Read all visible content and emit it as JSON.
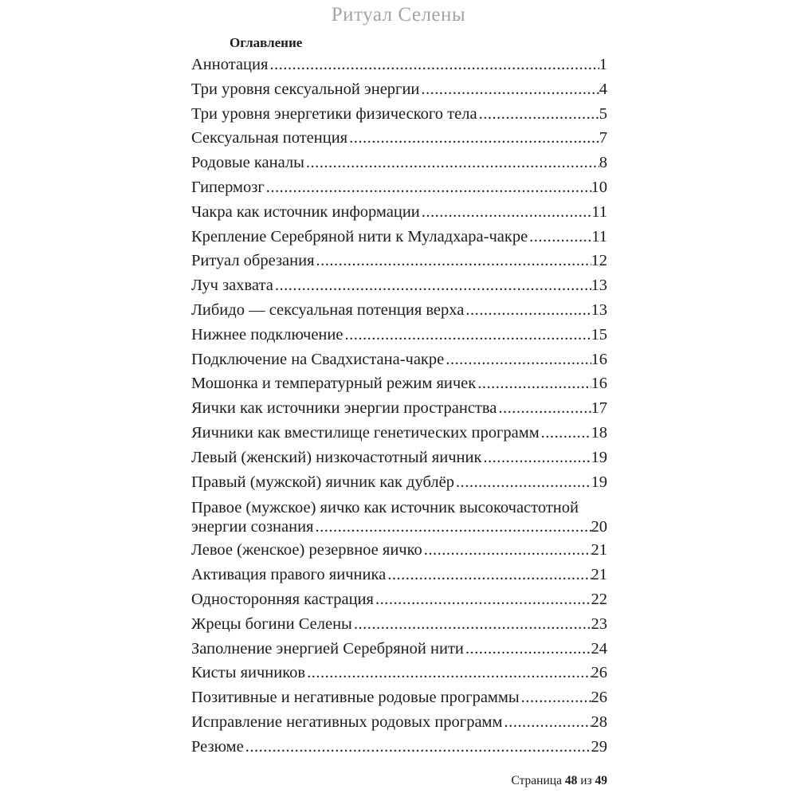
{
  "header": {
    "title": "Ритуал Селены"
  },
  "toc": {
    "heading": "Оглавление",
    "entries": [
      {
        "label": "Аннотация",
        "page": "1"
      },
      {
        "label": "Три уровня сексуальной энергии",
        "page": "4"
      },
      {
        "label": "Три уровня энергетики физического тела",
        "page": "5"
      },
      {
        "label": "Сексуальная потенция",
        "page": "7"
      },
      {
        "label": "Родовые каналы",
        "page": "8"
      },
      {
        "label": "Гипермозг",
        "page": "10"
      },
      {
        "label": "Чакра как источник информации",
        "page": "11"
      },
      {
        "label": "Крепление Серебряной нити к Муладхара-чакре",
        "page": "11"
      },
      {
        "label": "Ритуал обрезания",
        "page": "12"
      },
      {
        "label": "Луч захвата",
        "page": "13"
      },
      {
        "label": "Либидо — сексуальная потенция верха",
        "page": "13"
      },
      {
        "label": "Нижнее подключение",
        "page": "15"
      },
      {
        "label": "Подключение на Свадхистана-чакре",
        "page": "16"
      },
      {
        "label": "Мошонка и температурный режим яичек",
        "page": "16"
      },
      {
        "label": "Яички как источники энергии пространства",
        "page": "17"
      },
      {
        "label": "Яичники как вместилище генетических программ",
        "page": "18"
      },
      {
        "label": "Левый (женский) низкочастотный яичник",
        "page": "19"
      },
      {
        "label": "Правый (мужской) яичник как дублёр",
        "page": "19"
      },
      {
        "label": "Правое (мужское) яичко как источник высокочастотной",
        "label2": "энергии сознания",
        "page": "20"
      },
      {
        "label": "Левое (женское) резервное яичко",
        "page": "21"
      },
      {
        "label": "Активация правого яичника",
        "page": "21"
      },
      {
        "label": "Односторонняя кастрация",
        "page": "22"
      },
      {
        "label": "Жрецы богини Селены",
        "page": "23"
      },
      {
        "label": "Заполнение энергией Серебряной нити",
        "page": "24"
      },
      {
        "label": "Кисты яичников",
        "page": "26"
      },
      {
        "label": "Позитивные и негативные родовые программы",
        "page": "26"
      },
      {
        "label": "Исправление негативных родовых программ",
        "page": "28"
      },
      {
        "label": "Резюме",
        "page": "29"
      }
    ]
  },
  "footer": {
    "label": "Страница",
    "current_page": "48",
    "of_word": "из",
    "total_pages": "49"
  }
}
